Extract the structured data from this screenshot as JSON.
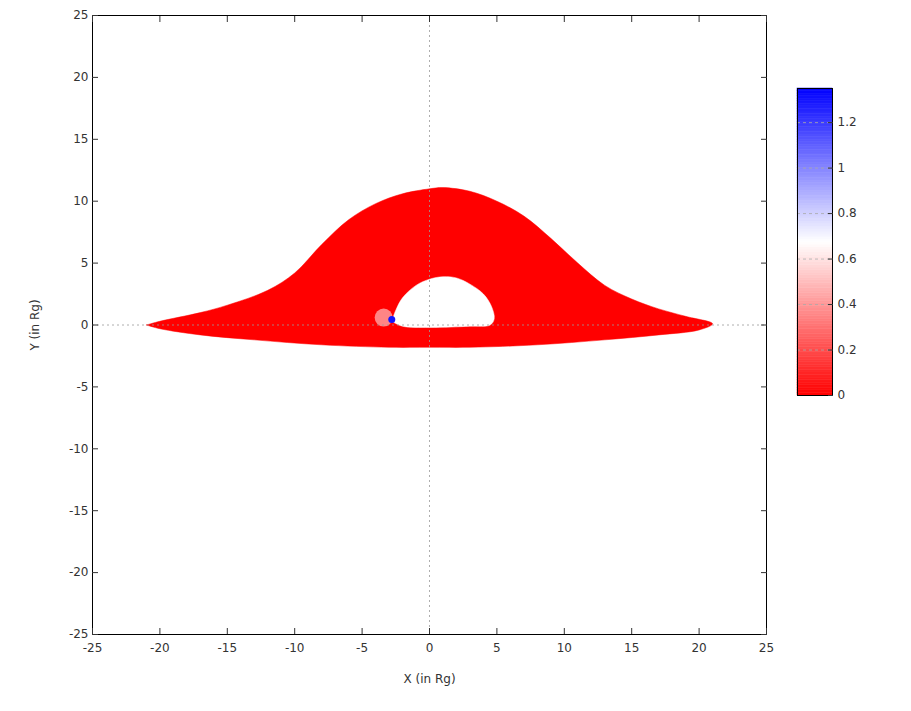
{
  "chart_data": {
    "type": "heatmap",
    "xlabel": "X (in Rg)",
    "ylabel": "Y (in Rg)",
    "xlim": [
      -25,
      25
    ],
    "ylim": [
      -25,
      25
    ],
    "xticks": [
      -25,
      -20,
      -15,
      -10,
      -5,
      0,
      5,
      10,
      15,
      20,
      25
    ],
    "yticks": [
      -25,
      -20,
      -15,
      -10,
      -5,
      0,
      5,
      10,
      15,
      20,
      25
    ],
    "grid": false,
    "colors": [
      "#ff0000",
      "#ffffff",
      "#0000ff"
    ],
    "color_range": [
      0,
      1.35
    ],
    "color_ticks": [
      0,
      0.2,
      0.4,
      0.6,
      0.8,
      1,
      1.2
    ],
    "regions": [
      {
        "value": 0,
        "outline": [
          [
            -21,
            0
          ],
          [
            -20,
            0.3
          ],
          [
            -17,
            1.0
          ],
          [
            -15,
            1.6
          ],
          [
            -12,
            2.8
          ],
          [
            -10,
            4.2
          ],
          [
            -8,
            6.5
          ],
          [
            -6,
            8.5
          ],
          [
            -4,
            9.8
          ],
          [
            -2,
            10.6
          ],
          [
            0,
            11
          ],
          [
            1,
            11.1
          ],
          [
            3,
            10.8
          ],
          [
            5,
            10
          ],
          [
            7,
            8.8
          ],
          [
            9,
            7
          ],
          [
            11,
            5
          ],
          [
            13,
            3.2
          ],
          [
            15,
            2.1
          ],
          [
            17,
            1.3
          ],
          [
            19,
            0.7
          ],
          [
            21,
            0.1
          ],
          [
            20,
            -0.4
          ],
          [
            17,
            -0.8
          ],
          [
            13,
            -1.2
          ],
          [
            8,
            -1.6
          ],
          [
            3,
            -1.8
          ],
          [
            0,
            -1.8
          ],
          [
            -3,
            -1.8
          ],
          [
            -8,
            -1.6
          ],
          [
            -13,
            -1.2
          ],
          [
            -17,
            -0.8
          ],
          [
            -20,
            -0.3
          ],
          [
            -21,
            0
          ]
        ]
      },
      {
        "value": null,
        "outline": [
          [
            -2.8,
            0.3
          ],
          [
            -2.5,
            1.2
          ],
          [
            -2,
            2.2
          ],
          [
            -1,
            3.2
          ],
          [
            0,
            3.7
          ],
          [
            1,
            3.9
          ],
          [
            2,
            3.8
          ],
          [
            3,
            3.3
          ],
          [
            4,
            2.5
          ],
          [
            4.6,
            1.5
          ],
          [
            4.8,
            0.5
          ],
          [
            4.5,
            0
          ],
          [
            3,
            -0.1
          ],
          [
            0,
            -0.2
          ],
          [
            -2,
            -0.1
          ],
          [
            -2.8,
            0.3
          ]
        ]
      }
    ],
    "spots": [
      {
        "x": -3.4,
        "y": 0.6,
        "value": 0.5
      },
      {
        "x": -2.8,
        "y": 0.45,
        "value": 1.3
      }
    ]
  }
}
